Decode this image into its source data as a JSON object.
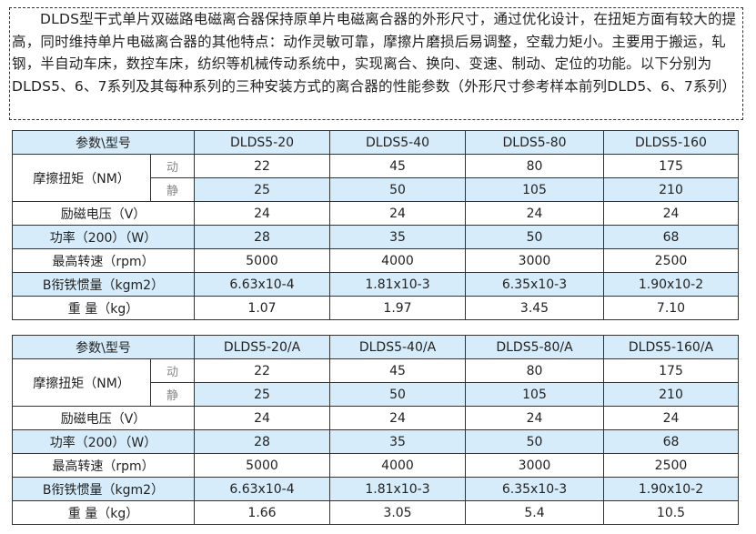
{
  "intro": "DLDS型干式单片双磁路电磁离合器保持原单片电磁离合器的外形尺寸，通过优化设计，在扭矩方面有较大的提高，同时维持单片电磁离合器的其他特点：动作灵敏可靠，摩擦片磨损后易调整，空载力矩小。主要用于搬运，轧钢，半自动车床，数控车床，纺织等机械传动系统中，实现离合、换向、变速、制动、定位的功能。以下分别为DLDS5、6、7系列及其每种系列的三种安装方式的离合器的性能参数（外形尺寸参考样本前列DLD5、6、7系列）",
  "highlight_color": "#d7ecfa",
  "row_labels": {
    "header": "参数\\型号",
    "torque": "摩擦扭矩（NM）",
    "dynamic": "动",
    "static": "静",
    "voltage": "励磁电压（V）",
    "power": "功率（200）（W）",
    "speed": "最高转速（rpm）",
    "inertia": "B衔铁惯量（kgm2）",
    "weight": "重 量（kg）"
  },
  "tables": [
    {
      "models": [
        "DLDS5-20",
        "DLDS5-40",
        "DLDS5-80",
        "DLDS5-160"
      ],
      "dynamic": [
        "22",
        "45",
        "80",
        "175"
      ],
      "static": [
        "25",
        "50",
        "105",
        "210"
      ],
      "voltage": [
        "24",
        "24",
        "24",
        "24"
      ],
      "power": [
        "28",
        "35",
        "50",
        "68"
      ],
      "speed": [
        "5000",
        "4000",
        "3000",
        "2500"
      ],
      "inertia": [
        "6.63x10-4",
        "1.81x10-3",
        "6.35x10-3",
        "1.90x10-2"
      ],
      "weight": [
        "1.07",
        "1.97",
        "3.45",
        "7.10"
      ]
    },
    {
      "models": [
        "DLDS5-20/A",
        "DLDS5-40/A",
        "DLDS5-80/A",
        "DLDS5-160/A"
      ],
      "dynamic": [
        "22",
        "45",
        "80",
        "175"
      ],
      "static": [
        "25",
        "50",
        "105",
        "210"
      ],
      "voltage": [
        "24",
        "24",
        "24",
        "24"
      ],
      "power": [
        "28",
        "35",
        "50",
        "68"
      ],
      "speed": [
        "5000",
        "4000",
        "3000",
        "2500"
      ],
      "inertia": [
        "6.63x10-4",
        "1.81x10-3",
        "6.35x10-3",
        "1.90x10-2"
      ],
      "weight": [
        "1.66",
        "3.05",
        "5.4",
        "10.5"
      ]
    }
  ]
}
